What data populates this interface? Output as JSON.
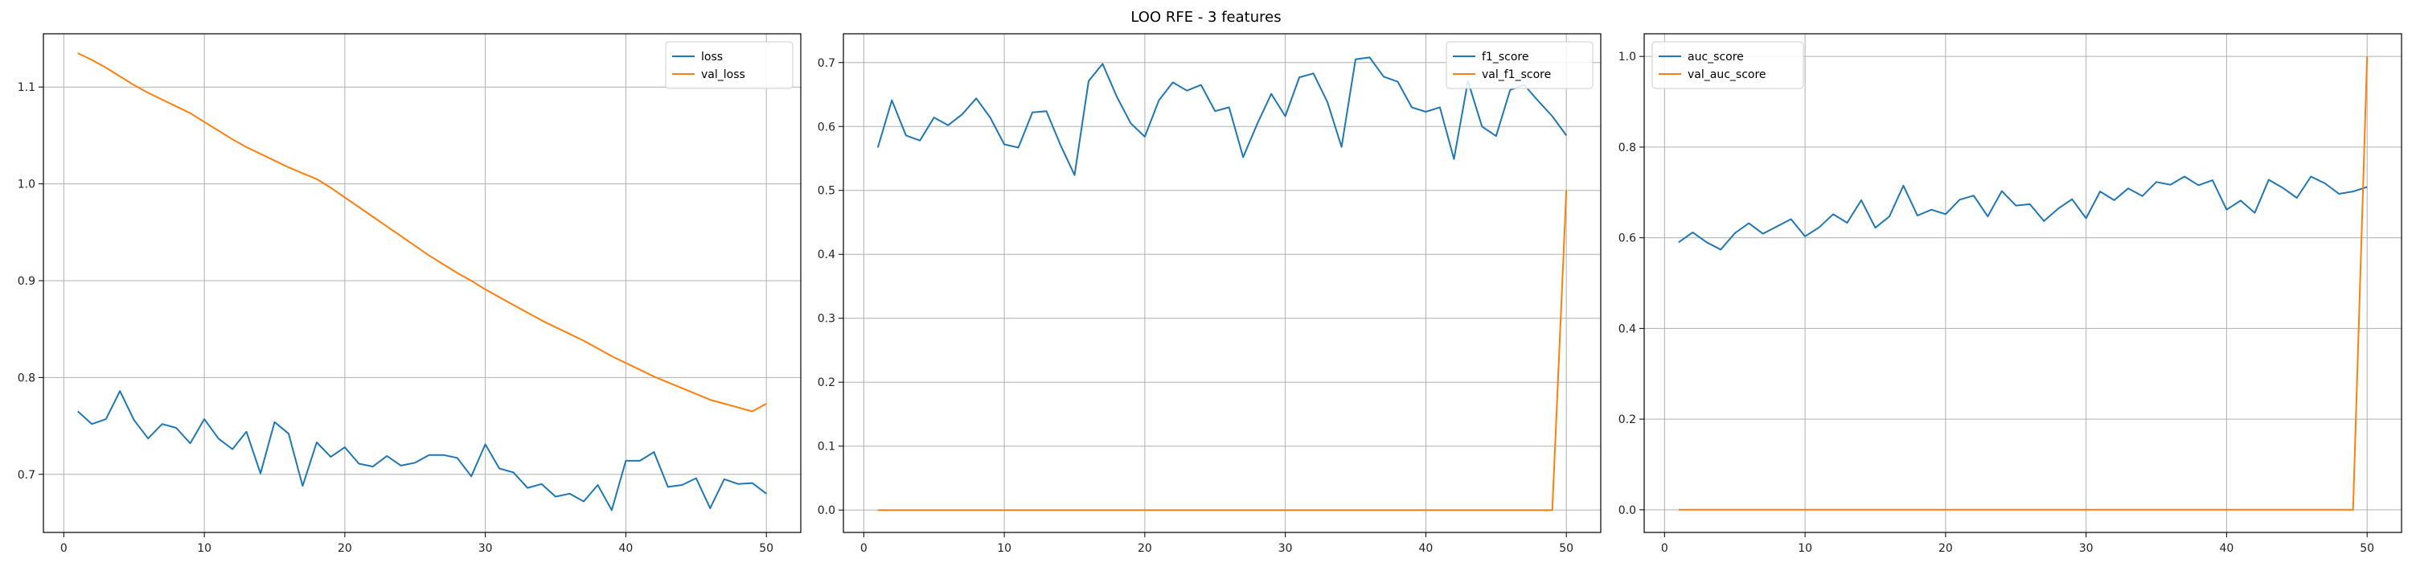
{
  "figure": {
    "title": "LOO RFE - 3 features"
  },
  "colors": {
    "blue": "#1f77b4",
    "orange": "#ff7f0e"
  },
  "chart_data": [
    {
      "type": "line",
      "legend_position": "upper-right",
      "grid": true,
      "xlim": [
        -1.45,
        52.45
      ],
      "ylim": [
        0.64,
        1.155
      ],
      "xticks": [
        0,
        10,
        20,
        30,
        40,
        50
      ],
      "yticks": [
        0.7,
        0.8,
        0.9,
        1.0,
        1.1
      ],
      "ytick_labels": [
        "0.7",
        "0.8",
        "0.9",
        "1.0",
        "1.1"
      ],
      "x": [
        1,
        2,
        3,
        4,
        5,
        6,
        7,
        8,
        9,
        10,
        11,
        12,
        13,
        14,
        15,
        16,
        17,
        18,
        19,
        20,
        21,
        22,
        23,
        24,
        25,
        26,
        27,
        28,
        29,
        30,
        31,
        32,
        33,
        34,
        35,
        36,
        37,
        38,
        39,
        40,
        41,
        42,
        43,
        44,
        45,
        46,
        47,
        48,
        49,
        50
      ],
      "series": [
        {
          "name": "loss",
          "color": "#1f77b4",
          "values": [
            0.765,
            0.752,
            0.757,
            0.786,
            0.756,
            0.737,
            0.752,
            0.748,
            0.732,
            0.757,
            0.737,
            0.726,
            0.744,
            0.701,
            0.754,
            0.742,
            0.688,
            0.733,
            0.718,
            0.728,
            0.711,
            0.708,
            0.719,
            0.709,
            0.712,
            0.72,
            0.72,
            0.717,
            0.698,
            0.731,
            0.706,
            0.702,
            0.686,
            0.69,
            0.677,
            0.68,
            0.672,
            0.689,
            0.663,
            0.714,
            0.714,
            0.723,
            0.687,
            0.689,
            0.696,
            0.665,
            0.695,
            0.69,
            0.691,
            0.68
          ]
        },
        {
          "name": "val_loss",
          "color": "#ff7f0e",
          "values": [
            1.135,
            1.128,
            1.12,
            1.111,
            1.102,
            1.094,
            1.087,
            1.08,
            1.073,
            1.064,
            1.055,
            1.046,
            1.038,
            1.031,
            1.024,
            1.017,
            1.011,
            1.005,
            0.996,
            0.986,
            0.976,
            0.966,
            0.956,
            0.946,
            0.936,
            0.926,
            0.917,
            0.908,
            0.9,
            0.891,
            0.883,
            0.875,
            0.867,
            0.859,
            0.852,
            0.845,
            0.838,
            0.83,
            0.822,
            0.815,
            0.808,
            0.801,
            0.795,
            0.789,
            0.783,
            0.777,
            0.773,
            0.769,
            0.765,
            0.773
          ]
        }
      ]
    },
    {
      "type": "line",
      "legend_position": "upper-right",
      "grid": true,
      "xlim": [
        -1.45,
        52.45
      ],
      "ylim": [
        -0.035,
        0.745
      ],
      "xticks": [
        0,
        10,
        20,
        30,
        40,
        50
      ],
      "yticks": [
        0.0,
        0.1,
        0.2,
        0.3,
        0.4,
        0.5,
        0.6,
        0.7
      ],
      "ytick_labels": [
        "0.0",
        "0.1",
        "0.2",
        "0.3",
        "0.4",
        "0.5",
        "0.6",
        "0.7"
      ],
      "x": [
        1,
        2,
        3,
        4,
        5,
        6,
        7,
        8,
        9,
        10,
        11,
        12,
        13,
        14,
        15,
        16,
        17,
        18,
        19,
        20,
        21,
        22,
        23,
        24,
        25,
        26,
        27,
        28,
        29,
        30,
        31,
        32,
        33,
        34,
        35,
        36,
        37,
        38,
        39,
        40,
        41,
        42,
        43,
        44,
        45,
        46,
        47,
        48,
        49,
        50
      ],
      "series": [
        {
          "name": "f1_score",
          "color": "#1f77b4",
          "values": [
            0.567,
            0.641,
            0.586,
            0.578,
            0.614,
            0.602,
            0.619,
            0.644,
            0.614,
            0.572,
            0.567,
            0.622,
            0.624,
            0.571,
            0.524,
            0.671,
            0.698,
            0.647,
            0.605,
            0.584,
            0.641,
            0.669,
            0.656,
            0.665,
            0.624,
            0.63,
            0.552,
            0.604,
            0.651,
            0.616,
            0.677,
            0.683,
            0.638,
            0.568,
            0.705,
            0.708,
            0.678,
            0.67,
            0.63,
            0.623,
            0.63,
            0.549,
            0.671,
            0.6,
            0.585,
            0.657,
            0.665,
            0.64,
            0.616,
            0.586
          ]
        },
        {
          "name": "val_f1_score",
          "color": "#ff7f0e",
          "values": [
            0,
            0,
            0,
            0,
            0,
            0,
            0,
            0,
            0,
            0,
            0,
            0,
            0,
            0,
            0,
            0,
            0,
            0,
            0,
            0,
            0,
            0,
            0,
            0,
            0,
            0,
            0,
            0,
            0,
            0,
            0,
            0,
            0,
            0,
            0,
            0,
            0,
            0,
            0,
            0,
            0,
            0,
            0,
            0,
            0,
            0,
            0,
            0,
            0,
            0.5
          ]
        }
      ]
    },
    {
      "type": "line",
      "legend_position": "upper-left",
      "grid": true,
      "xlim": [
        -1.45,
        52.45
      ],
      "ylim": [
        -0.05,
        1.05
      ],
      "xticks": [
        0,
        10,
        20,
        30,
        40,
        50
      ],
      "yticks": [
        0.0,
        0.2,
        0.4,
        0.6,
        0.8,
        1.0
      ],
      "ytick_labels": [
        "0.0",
        "0.2",
        "0.4",
        "0.6",
        "0.8",
        "1.0"
      ],
      "x": [
        1,
        2,
        3,
        4,
        5,
        6,
        7,
        8,
        9,
        10,
        11,
        12,
        13,
        14,
        15,
        16,
        17,
        18,
        19,
        20,
        21,
        22,
        23,
        24,
        25,
        26,
        27,
        28,
        29,
        30,
        31,
        32,
        33,
        34,
        35,
        36,
        37,
        38,
        39,
        40,
        41,
        42,
        43,
        44,
        45,
        46,
        47,
        48,
        49,
        50
      ],
      "series": [
        {
          "name": "auc_score",
          "color": "#1f77b4",
          "values": [
            0.59,
            0.612,
            0.59,
            0.574,
            0.61,
            0.632,
            0.609,
            0.625,
            0.641,
            0.603,
            0.623,
            0.652,
            0.633,
            0.683,
            0.622,
            0.647,
            0.715,
            0.649,
            0.662,
            0.652,
            0.684,
            0.693,
            0.647,
            0.703,
            0.671,
            0.674,
            0.637,
            0.664,
            0.685,
            0.643,
            0.702,
            0.683,
            0.709,
            0.692,
            0.723,
            0.717,
            0.735,
            0.716,
            0.727,
            0.662,
            0.682,
            0.655,
            0.728,
            0.71,
            0.688,
            0.735,
            0.72,
            0.697,
            0.702,
            0.712
          ]
        },
        {
          "name": "val_auc_score",
          "color": "#ff7f0e",
          "values": [
            0,
            0,
            0,
            0,
            0,
            0,
            0,
            0,
            0,
            0,
            0,
            0,
            0,
            0,
            0,
            0,
            0,
            0,
            0,
            0,
            0,
            0,
            0,
            0,
            0,
            0,
            0,
            0,
            0,
            0,
            0,
            0,
            0,
            0,
            0,
            0,
            0,
            0,
            0,
            0,
            0,
            0,
            0,
            0,
            0,
            0,
            0,
            0,
            0,
            1.0
          ]
        }
      ]
    }
  ]
}
